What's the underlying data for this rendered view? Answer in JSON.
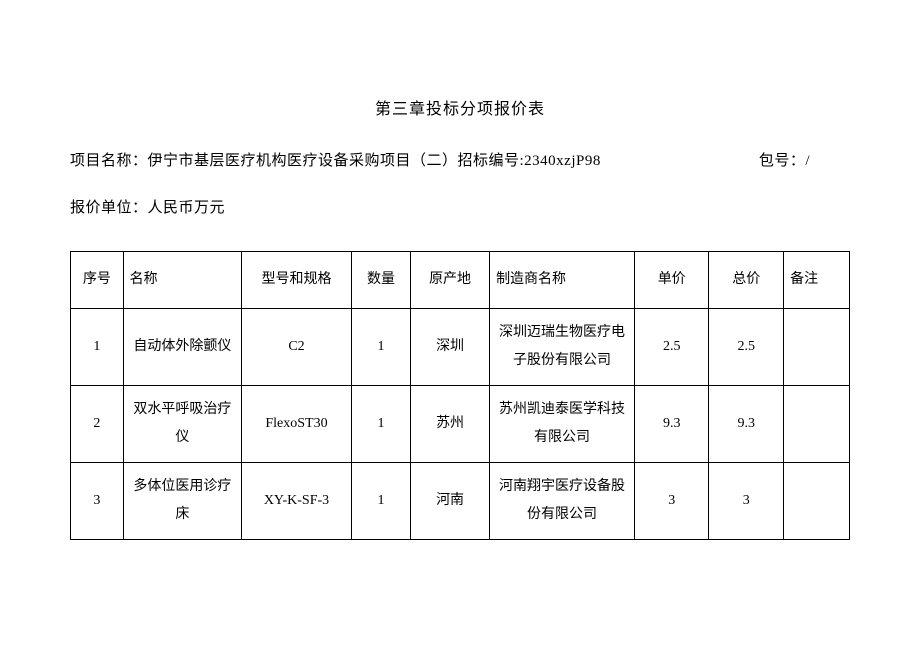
{
  "title": "第三章投标分项报价表",
  "project_label": "项目名称：",
  "project_name": "伊宁市基层医疗机构医疗设备采购项目（二）招标编号:2340xzjP98",
  "package_label": "包号：",
  "package_value": "/",
  "unit_label": "报价单位：",
  "unit_value": "人民币万元",
  "columns": {
    "seq": "序号",
    "name": "名称",
    "model": "型号和规格",
    "qty": "数量",
    "origin": "原产地",
    "mfr": "制造商名称",
    "unit_price": "单价",
    "total_price": "总价",
    "remark": "备注"
  },
  "rows": [
    {
      "seq": "1",
      "name": "自动体外除颤仪",
      "model": "C2",
      "qty": "1",
      "origin": "深圳",
      "mfr": "深圳迈瑞生物医疗电子股份有限公司",
      "unit_price": "2.5",
      "total_price": "2.5",
      "remark": ""
    },
    {
      "seq": "2",
      "name": "双水平呼吸治疗仪",
      "model": "FlexoST30",
      "qty": "1",
      "origin": "苏州",
      "mfr": "苏州凯迪泰医学科技有限公司",
      "unit_price": "9.3",
      "total_price": "9.3",
      "remark": ""
    },
    {
      "seq": "3",
      "name": "多体位医用诊疗床",
      "model": "XY-K-SF-3",
      "qty": "1",
      "origin": "河南",
      "mfr": "河南翔宇医疗设备股份有限公司",
      "unit_price": "3",
      "total_price": "3",
      "remark": ""
    }
  ]
}
